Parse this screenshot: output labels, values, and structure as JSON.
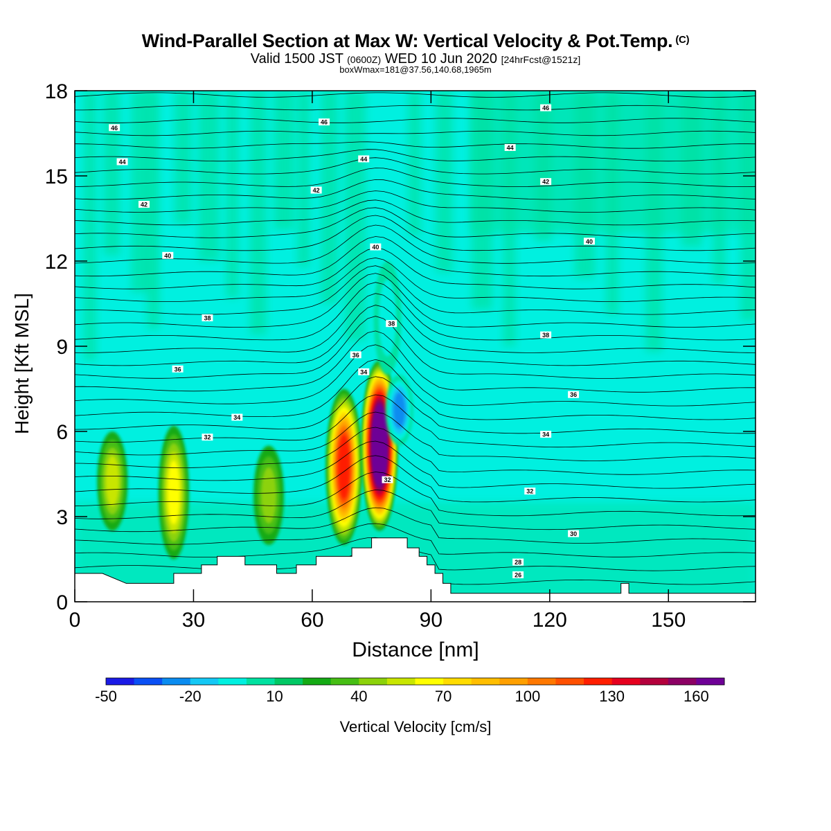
{
  "header": {
    "title": "Wind-Parallel Section at Max W: Vertical Velocity & Pot.Temp.",
    "copyright": "(C)",
    "subtitle_main": "Valid 1500 JST",
    "subtitle_utc": "(0600Z)",
    "subtitle_date": "WED 10 Jun 2020",
    "subtitle_fcst": "[24hrFcst@1521z]",
    "info": "boxWmax=181@37.56,140.68,1965m"
  },
  "chart_data": {
    "type": "heatmap",
    "xlabel": "Distance [nm]",
    "ylabel": "Height [Kft MSL]",
    "xlim": [
      0,
      172
    ],
    "ylim": [
      0,
      18
    ],
    "x_ticks": [
      0,
      30,
      60,
      90,
      120,
      150
    ],
    "y_ticks": [
      0,
      3,
      6,
      9,
      12,
      15,
      18
    ],
    "background_color": "#00f0e0",
    "colorbar": {
      "title": "Vertical Velocity [cm/s]",
      "tick_labels": [
        "-50",
        "-20",
        "10",
        "40",
        "70",
        "100",
        "130",
        "160"
      ],
      "colors": [
        "#1a1ae6",
        "#0a50f5",
        "#0a8cf0",
        "#14c8f5",
        "#00f0e0",
        "#00e1a0",
        "#00c864",
        "#14aa14",
        "#46be14",
        "#8cd20a",
        "#c8e600",
        "#ffff00",
        "#ffdc00",
        "#ffbe00",
        "#ffa000",
        "#ff7800",
        "#ff5000",
        "#ff1e00",
        "#e6001e",
        "#b4003c",
        "#8c0064",
        "#6e0096"
      ]
    },
    "velocity_cores": [
      {
        "x": 9.5,
        "base": 2.5,
        "top": 6.0,
        "peak": 45
      },
      {
        "x": 25,
        "base": 1.5,
        "top": 6.2,
        "peak": 55
      },
      {
        "x": 49,
        "base": 2.0,
        "top": 5.5,
        "peak": 35
      },
      {
        "x": 68,
        "base": 2.0,
        "top": 7.5,
        "peak": 110
      },
      {
        "x": 77,
        "base": 2.5,
        "top": 8.5,
        "peak": 181
      },
      {
        "x": 82,
        "base": 5.5,
        "top": 8.0,
        "peak": -45
      },
      {
        "x": 79,
        "base": 8.0,
        "top": 12.0,
        "peak": -25
      }
    ],
    "theta_labels": [
      {
        "label": "46",
        "x": 10,
        "y": 16.7
      },
      {
        "label": "46",
        "x": 63,
        "y": 16.9
      },
      {
        "label": "46",
        "x": 119,
        "y": 17.4
      },
      {
        "label": "44",
        "x": 12,
        "y": 15.5
      },
      {
        "label": "44",
        "x": 73,
        "y": 15.6
      },
      {
        "label": "44",
        "x": 110,
        "y": 16.0
      },
      {
        "label": "42",
        "x": 17.5,
        "y": 14.0
      },
      {
        "label": "42",
        "x": 61,
        "y": 14.5
      },
      {
        "label": "42",
        "x": 119,
        "y": 14.8
      },
      {
        "label": "40",
        "x": 23.5,
        "y": 12.2
      },
      {
        "label": "40",
        "x": 76,
        "y": 12.5
      },
      {
        "label": "40",
        "x": 130,
        "y": 12.7
      },
      {
        "label": "38",
        "x": 33.5,
        "y": 10.0
      },
      {
        "label": "38",
        "x": 80,
        "y": 9.8
      },
      {
        "label": "38",
        "x": 119,
        "y": 9.4
      },
      {
        "label": "36",
        "x": 26,
        "y": 8.2
      },
      {
        "label": "36",
        "x": 71,
        "y": 8.7
      },
      {
        "label": "36",
        "x": 126,
        "y": 7.3
      },
      {
        "label": "34",
        "x": 41,
        "y": 6.5
      },
      {
        "label": "34",
        "x": 73,
        "y": 8.1
      },
      {
        "label": "34",
        "x": 119,
        "y": 5.9
      },
      {
        "label": "32",
        "x": 33.5,
        "y": 5.8
      },
      {
        "label": "32",
        "x": 79,
        "y": 4.3
      },
      {
        "label": "32",
        "x": 115,
        "y": 3.9
      },
      {
        "label": "30",
        "x": 126,
        "y": 2.4
      },
      {
        "label": "28",
        "x": 112,
        "y": 1.4
      },
      {
        "label": "26",
        "x": 112,
        "y": 0.95
      }
    ],
    "terrain_profile": [
      [
        0,
        1.0
      ],
      [
        7,
        1.0
      ],
      [
        13,
        0.65
      ],
      [
        25,
        0.65
      ],
      [
        25,
        1.0
      ],
      [
        32,
        1.0
      ],
      [
        32,
        1.3
      ],
      [
        36,
        1.3
      ],
      [
        36,
        1.6
      ],
      [
        43,
        1.6
      ],
      [
        43,
        1.3
      ],
      [
        51,
        1.3
      ],
      [
        51,
        1.0
      ],
      [
        56,
        1.0
      ],
      [
        56,
        1.3
      ],
      [
        61,
        1.3
      ],
      [
        61,
        1.6
      ],
      [
        70,
        1.6
      ],
      [
        70,
        1.9
      ],
      [
        75,
        1.9
      ],
      [
        75,
        2.25
      ],
      [
        84,
        2.25
      ],
      [
        84,
        1.9
      ],
      [
        87,
        1.9
      ],
      [
        87,
        1.6
      ],
      [
        89,
        1.6
      ],
      [
        89,
        1.3
      ],
      [
        91,
        1.3
      ],
      [
        91,
        1.0
      ],
      [
        93,
        1.0
      ],
      [
        93,
        0.65
      ],
      [
        95,
        0.65
      ],
      [
        95,
        0.3
      ],
      [
        138,
        0.3
      ],
      [
        138,
        0.65
      ],
      [
        140,
        0.65
      ],
      [
        140,
        0.3
      ],
      [
        172,
        0.3
      ]
    ]
  }
}
